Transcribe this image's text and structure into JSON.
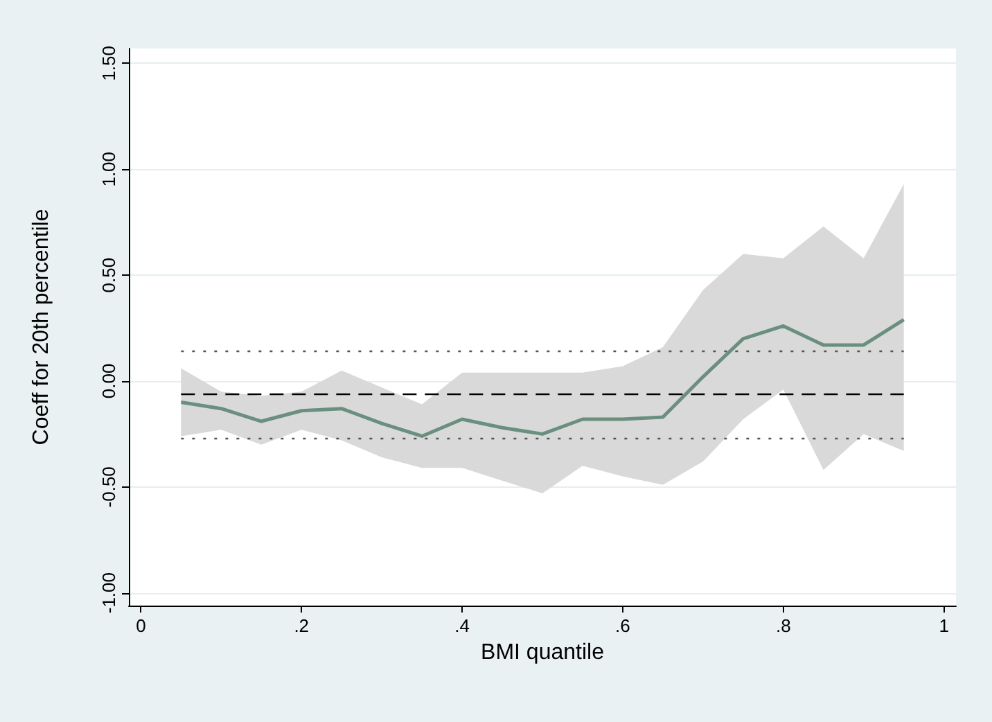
{
  "chart_data": {
    "type": "line",
    "xlabel": "BMI quantile",
    "ylabel": "Coeff for 20th percentile",
    "x": [
      0.05,
      0.1,
      0.15,
      0.2,
      0.25,
      0.3,
      0.35,
      0.4,
      0.45,
      0.5,
      0.55,
      0.6,
      0.65,
      0.7,
      0.75,
      0.8,
      0.85,
      0.9,
      0.95
    ],
    "series": [
      {
        "color": "#6a8f7f",
        "values": [
          -0.1,
          -0.13,
          -0.19,
          -0.14,
          -0.13,
          -0.2,
          -0.26,
          -0.18,
          -0.22,
          -0.25,
          -0.18,
          -0.18,
          -0.17,
          0.02,
          0.2,
          0.26,
          0.17,
          0.17,
          0.29
        ],
        "lower": [
          -0.26,
          -0.23,
          -0.3,
          -0.23,
          -0.28,
          -0.36,
          -0.41,
          -0.41,
          -0.47,
          -0.53,
          -0.4,
          -0.45,
          -0.49,
          -0.38,
          -0.18,
          -0.04,
          -0.42,
          -0.25,
          -0.33
        ],
        "upper": [
          0.06,
          -0.05,
          -0.07,
          -0.05,
          0.05,
          -0.03,
          -0.11,
          0.04,
          0.04,
          0.04,
          0.04,
          0.07,
          0.16,
          0.43,
          0.6,
          0.58,
          0.73,
          0.58,
          0.93
        ]
      }
    ],
    "ref_lines": [
      {
        "axis": "y",
        "value": -0.06,
        "color": "#000000",
        "line_style": "dashed"
      },
      {
        "axis": "y",
        "value": 0.14,
        "color": "#555555",
        "line_style": "dotted"
      },
      {
        "axis": "y",
        "value": -0.27,
        "color": "#555555",
        "line_style": "dotted"
      }
    ],
    "xlim": [
      -0.015,
      1.015
    ],
    "xticks": [
      {
        "value": 0,
        "label": "0"
      },
      {
        "value": 0.2,
        "label": ".2"
      },
      {
        "value": 0.4,
        "label": ".4"
      },
      {
        "value": 0.6,
        "label": ".6"
      },
      {
        "value": 0.8,
        "label": ".8"
      },
      {
        "value": 1,
        "label": "1"
      }
    ],
    "ylim": [
      -1.06,
      1.57
    ],
    "yticks": [
      {
        "value": -1,
        "label": "-1.00"
      },
      {
        "value": -0.5,
        "label": "-0.50"
      },
      {
        "value": 0,
        "label": "0.00"
      },
      {
        "value": 0.5,
        "label": "0.50"
      },
      {
        "value": 1,
        "label": "1.00"
      },
      {
        "value": 1.5,
        "label": "1.50"
      }
    ],
    "grid": "y",
    "marker": "none",
    "line_style": "solid"
  }
}
